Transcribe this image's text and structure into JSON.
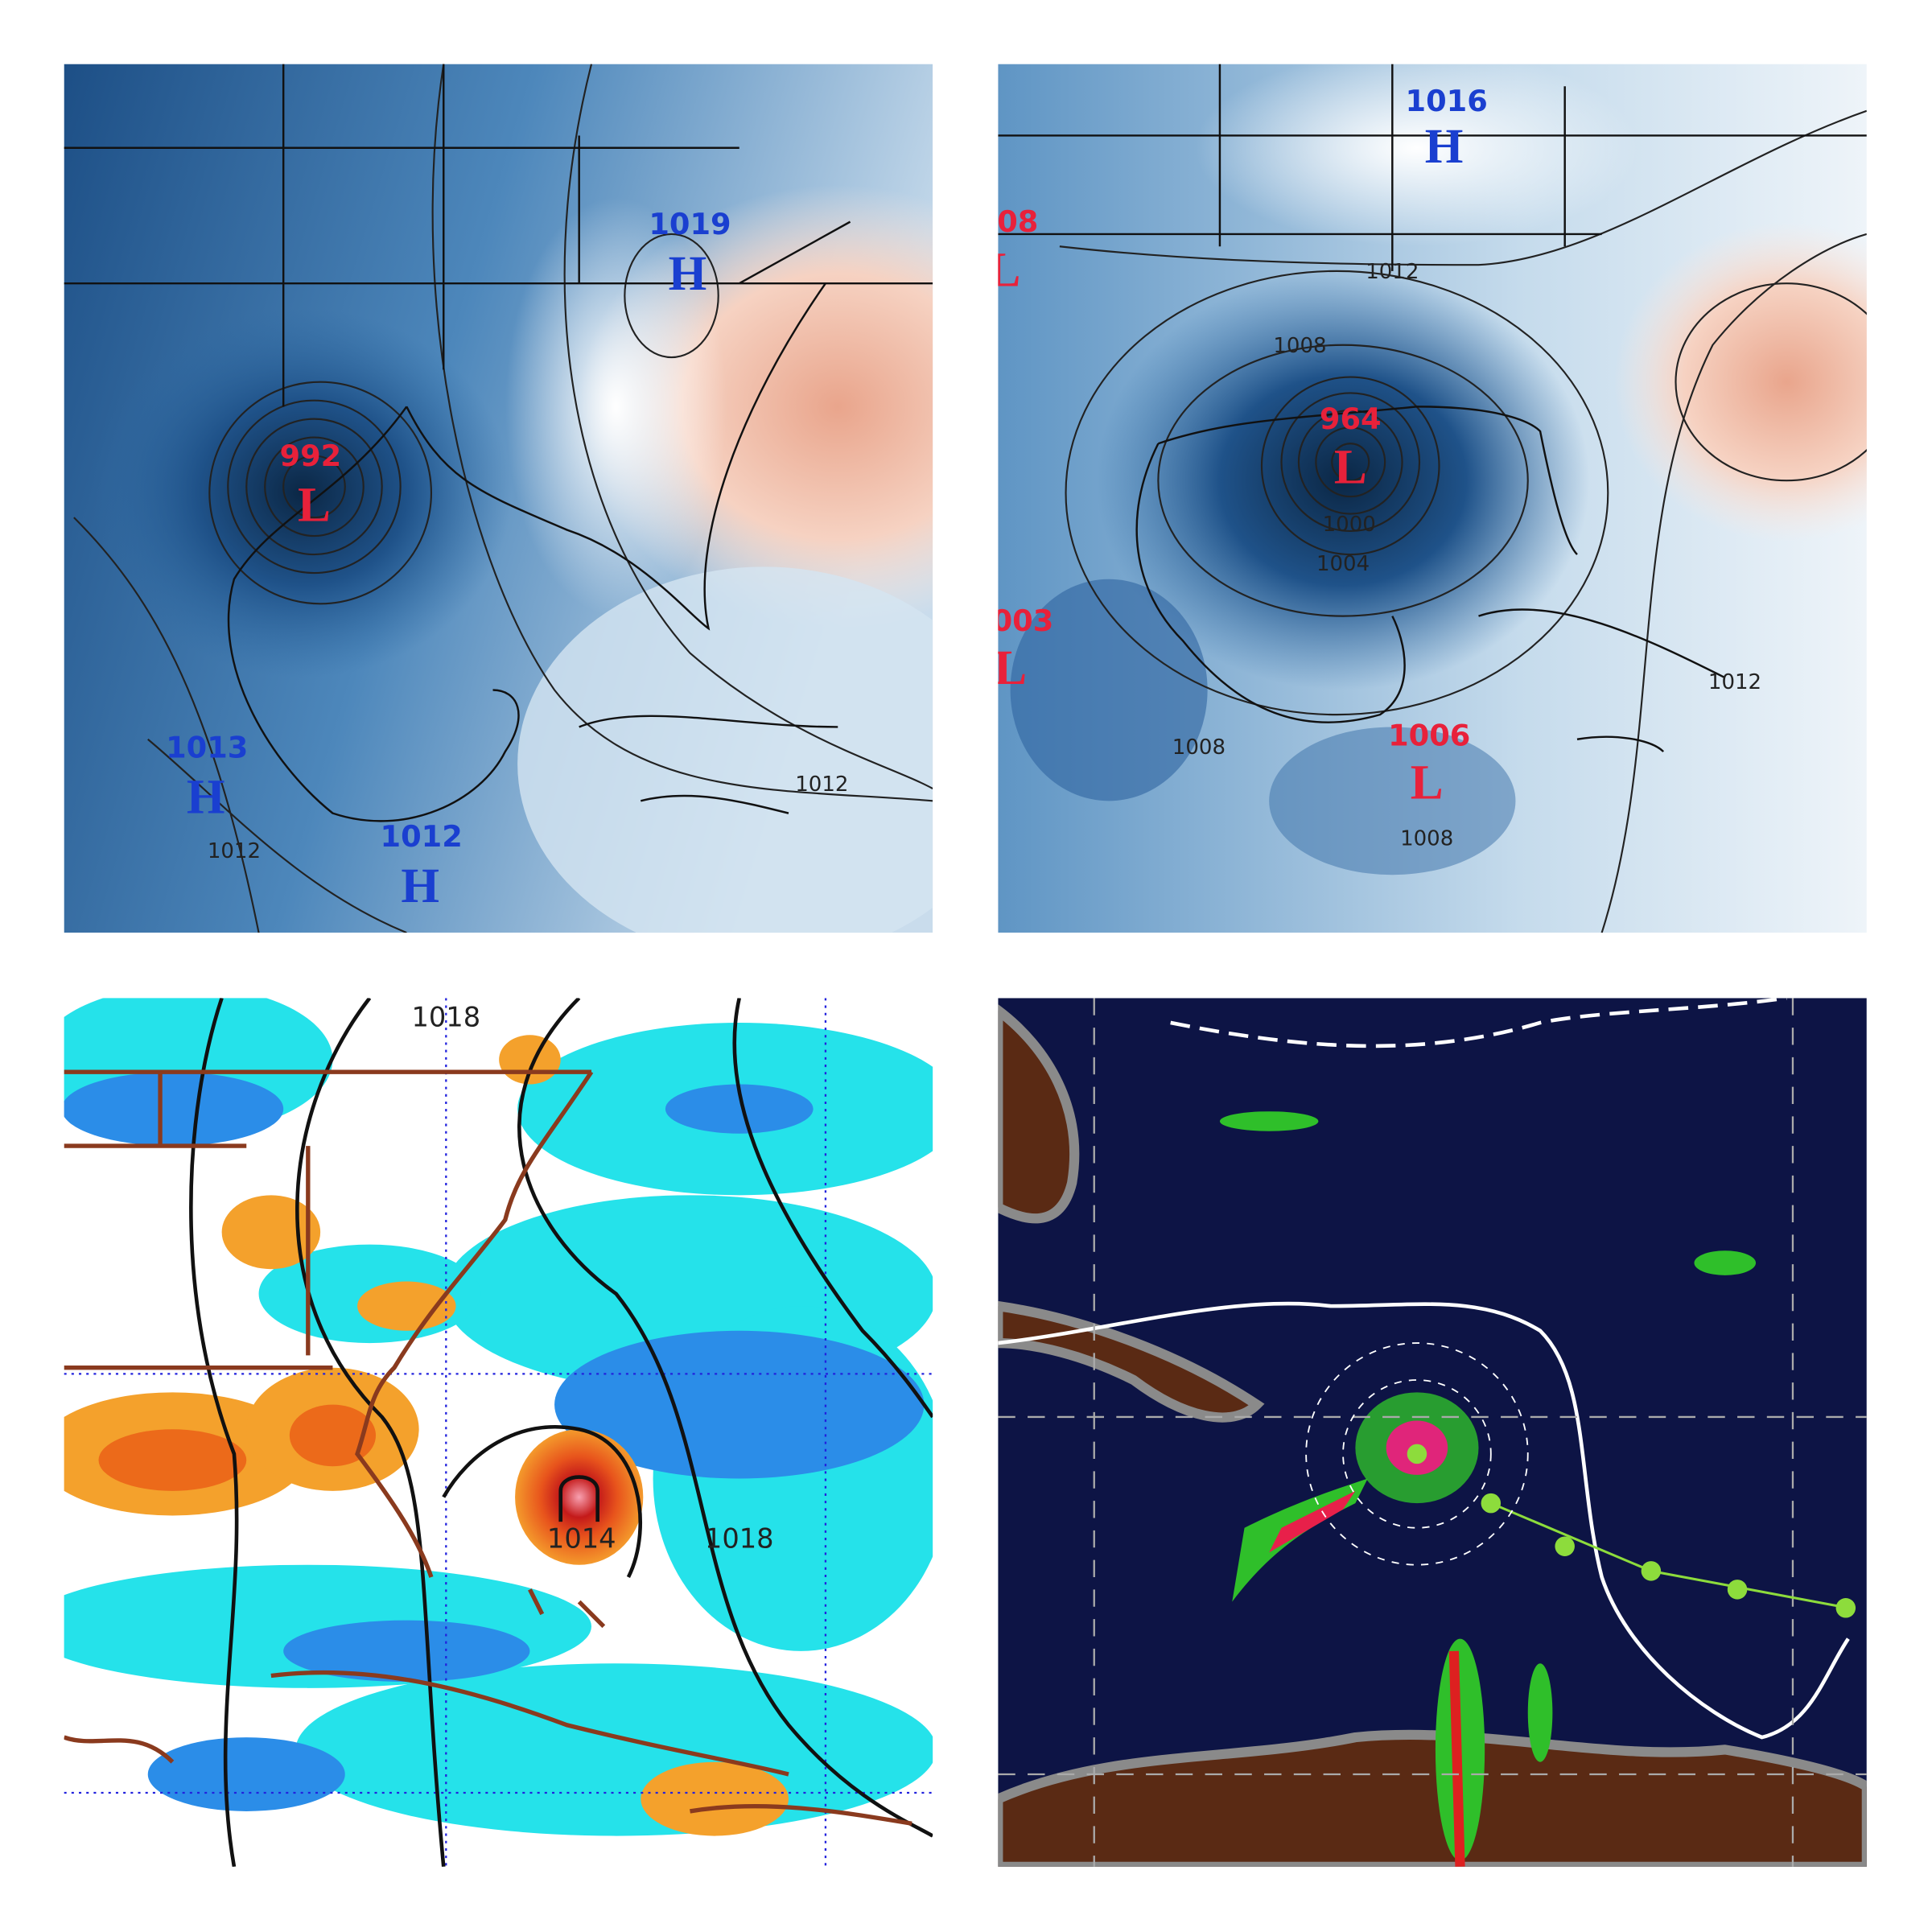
{
  "panels": [
    {
      "centers": [
        {
          "pressure": "992",
          "symbol": "L"
        },
        {
          "pressure": "1019",
          "symbol": "H"
        },
        {
          "pressure": "1013",
          "symbol": "H"
        },
        {
          "pressure": "1012",
          "symbol": "H"
        }
      ],
      "isobar_labels": [
        "1012",
        "1012"
      ]
    },
    {
      "centers": [
        {
          "pressure": "1016",
          "symbol": "H"
        },
        {
          "pressure": "08",
          "symbol": "L"
        },
        {
          "pressure": "964",
          "symbol": "L"
        },
        {
          "pressure": "003",
          "symbol": "L"
        },
        {
          "pressure": "1006",
          "symbol": "L"
        }
      ],
      "isobar_labels": [
        "1012",
        "1008",
        "1000",
        "1004",
        "1008",
        "1012",
        "1008"
      ]
    },
    {
      "isobar_labels": [
        "1018",
        "1014",
        "1018"
      ]
    }
  ]
}
